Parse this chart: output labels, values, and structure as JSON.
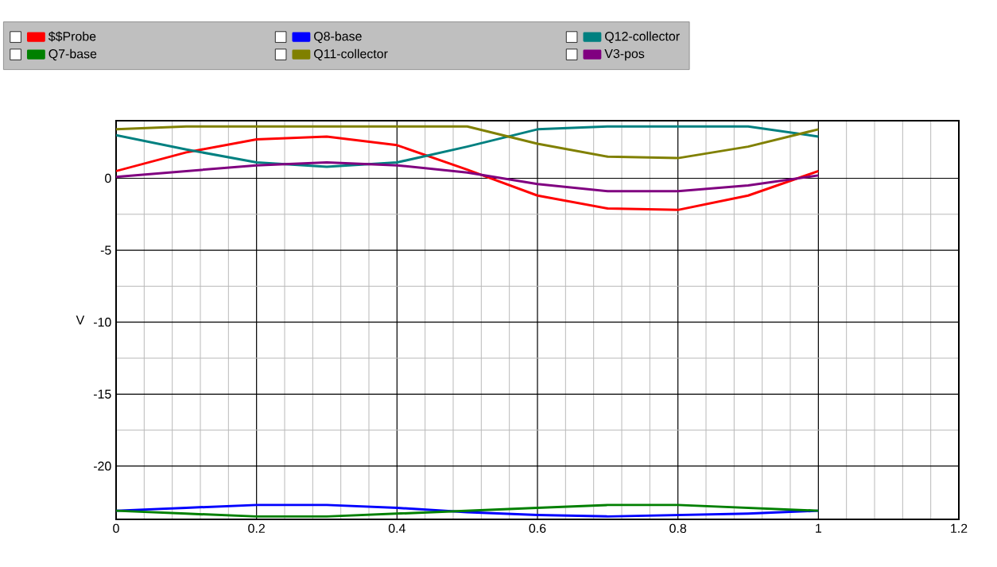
{
  "chart_data": {
    "type": "line",
    "ylabel": "V",
    "x": [
      0,
      0.1,
      0.2,
      0.3,
      0.4,
      0.5,
      0.6,
      0.7,
      0.8,
      0.9,
      1
    ],
    "series": [
      {
        "name": "$$Probe",
        "color": "#ff0000",
        "values": [
          0.5,
          1.8,
          2.7,
          2.9,
          2.3,
          0.6,
          -1.2,
          -2.1,
          -2.2,
          -1.2,
          0.5
        ]
      },
      {
        "name": "Q8-base",
        "color": "#0000ff",
        "values": [
          -23.1,
          -22.9,
          -22.7,
          -22.7,
          -22.9,
          -23.2,
          -23.4,
          -23.5,
          -23.4,
          -23.3,
          -23.1
        ]
      },
      {
        "name": "Q12-collector",
        "color": "#008080",
        "values": [
          3.0,
          2.0,
          1.1,
          0.8,
          1.1,
          2.2,
          3.4,
          3.6,
          3.6,
          3.6,
          2.9
        ]
      },
      {
        "name": "Q7-base",
        "color": "#008000",
        "values": [
          -23.1,
          -23.3,
          -23.5,
          -23.5,
          -23.3,
          -23.1,
          -22.9,
          -22.7,
          -22.7,
          -22.9,
          -23.1
        ]
      },
      {
        "name": "Q11-collector",
        "color": "#808000",
        "values": [
          3.4,
          3.6,
          3.6,
          3.6,
          3.6,
          3.6,
          2.4,
          1.5,
          1.4,
          2.2,
          3.4
        ]
      },
      {
        "name": "V3-pos",
        "color": "#800080",
        "values": [
          0.1,
          0.5,
          0.9,
          1.1,
          0.9,
          0.4,
          -0.4,
          -0.9,
          -0.9,
          -0.5,
          0.2
        ]
      }
    ],
    "xlim": [
      0,
      1.2
    ],
    "ylim": [
      -23.7,
      4
    ],
    "xticks": [
      0,
      0.2,
      0.4,
      0.6,
      0.8,
      1,
      1.2
    ],
    "yticks": [
      -20,
      -15,
      -10,
      -5,
      0
    ],
    "grid": true,
    "legend": "top",
    "marker": "none",
    "line_style": "solid"
  }
}
